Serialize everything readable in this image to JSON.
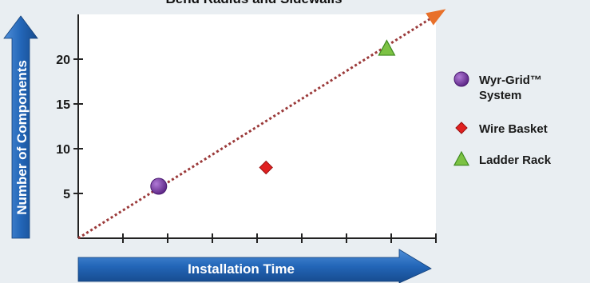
{
  "chart_data": {
    "type": "scatter",
    "title": "Bend Radius and Sidewalls",
    "xlabel": "Installation Time",
    "ylabel": "Number of Components",
    "xlim": [
      0,
      8
    ],
    "ylim": [
      0,
      25
    ],
    "yticks": [
      5,
      10,
      15,
      20
    ],
    "xtick_count": 8,
    "grid": false,
    "legend_position": "right",
    "trend_line": {
      "color": "#9b3a3a",
      "style": "dotted",
      "arrow_color": "#e8702a"
    },
    "series": [
      {
        "name": "Wyr-Grid™ System",
        "label_lines": [
          "Wyr-Grid™",
          "System"
        ],
        "marker": "circle",
        "color": "#7b3fa6",
        "x": [
          1.8
        ],
        "y": [
          5.8
        ]
      },
      {
        "name": "Wire Basket",
        "label_lines": [
          "Wire Basket"
        ],
        "marker": "diamond",
        "color": "#e02020",
        "x": [
          4.2
        ],
        "y": [
          7.9
        ]
      },
      {
        "name": "Ladder Rack",
        "label_lines": [
          "Ladder Rack"
        ],
        "marker": "triangle",
        "color": "#7cc243",
        "x": [
          6.9
        ],
        "y": [
          21.2
        ]
      }
    ]
  }
}
